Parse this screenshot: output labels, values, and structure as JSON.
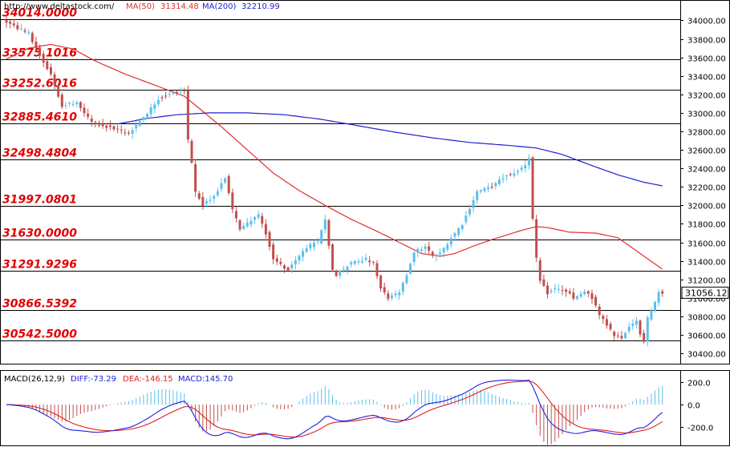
{
  "header": {
    "source": "http://www.deltastock.com/",
    "ma50_label": "MA(50)",
    "ma50_value": "31314.48",
    "ma200_label": "MA(200)",
    "ma200_value": "32210.99"
  },
  "colors": {
    "up_candle": "#5bc0eb",
    "down_candle": "#c0504d",
    "ma50": "#e03030",
    "ma200": "#2020d0",
    "level_text": "#e00000",
    "diff_line": "#2020e0",
    "dea_line": "#e02020",
    "hist_up": "#5bc0eb",
    "hist_down": "#c0504d"
  },
  "chart_data": {
    "type": "candlestick",
    "price_axis": {
      "ylim": [
        30280,
        34220
      ],
      "ticks": [
        34000,
        33800,
        33600,
        33400,
        33200,
        33000,
        32800,
        32600,
        32400,
        32200,
        32000,
        31800,
        31600,
        31400,
        31200,
        31000,
        30800,
        30600,
        30400
      ],
      "tick_labels": [
        "34000.00",
        "33800.00",
        "33600.00",
        "33400.00",
        "33200.00",
        "33000.00",
        "32800.00",
        "32600.00",
        "32400.00",
        "32200.00",
        "32000.00",
        "31800.00",
        "31600.00",
        "31400.00",
        "31200.00",
        "31000.00",
        "30800.00",
        "30600.00",
        "30400.00"
      ]
    },
    "last_price": "31056.12",
    "last_price_value": 31056.12,
    "levels": [
      {
        "label": "34014.0000",
        "value": 34014.0
      },
      {
        "label": "33575.1016",
        "value": 33575.1016
      },
      {
        "label": "33252.6016",
        "value": 33252.6016
      },
      {
        "label": "32885.4610",
        "value": 32885.461
      },
      {
        "label": "32498.4804",
        "value": 32498.4804
      },
      {
        "label": "31997.0801",
        "value": 31997.0801
      },
      {
        "label": "31630.0000",
        "value": 31630.0
      },
      {
        "label": "31291.9296",
        "value": 31291.9296
      },
      {
        "label": "30866.5392",
        "value": 30866.5392
      },
      {
        "label": "30542.5000",
        "value": 30542.5
      }
    ],
    "anchors": [
      [
        0,
        33980
      ],
      [
        6,
        33850
      ],
      [
        8,
        33700
      ],
      [
        10,
        33550
      ],
      [
        12,
        33420
      ],
      [
        13,
        33300
      ],
      [
        15,
        33080
      ],
      [
        19,
        33100
      ],
      [
        23,
        32900
      ],
      [
        28,
        32840
      ],
      [
        33,
        32780
      ],
      [
        38,
        33000
      ],
      [
        41,
        33150
      ],
      [
        44,
        33200
      ],
      [
        46,
        33230
      ],
      [
        48,
        33250
      ],
      [
        49,
        32700
      ],
      [
        50,
        32450
      ],
      [
        51,
        32150
      ],
      [
        53,
        32000
      ],
      [
        56,
        32100
      ],
      [
        59,
        32300
      ],
      [
        61,
        31950
      ],
      [
        63,
        31750
      ],
      [
        68,
        31900
      ],
      [
        70,
        31700
      ],
      [
        72,
        31420
      ],
      [
        76,
        31300
      ],
      [
        79,
        31450
      ],
      [
        81,
        31550
      ],
      [
        84,
        31600
      ],
      [
        86,
        31850
      ],
      [
        88,
        31300
      ],
      [
        89,
        31250
      ],
      [
        93,
        31380
      ],
      [
        97,
        31420
      ],
      [
        99,
        31370
      ],
      [
        101,
        31100
      ],
      [
        103,
        31000
      ],
      [
        106,
        31050
      ],
      [
        108,
        31250
      ],
      [
        110,
        31500
      ],
      [
        113,
        31550
      ],
      [
        115,
        31460
      ],
      [
        117,
        31480
      ],
      [
        120,
        31650
      ],
      [
        123,
        31800
      ],
      [
        127,
        32150
      ],
      [
        131,
        32200
      ],
      [
        134,
        32300
      ],
      [
        137,
        32350
      ],
      [
        140,
        32440
      ],
      [
        141,
        32520
      ],
      [
        142,
        31850
      ],
      [
        143,
        31420
      ],
      [
        144,
        31180
      ],
      [
        146,
        31050
      ],
      [
        148,
        31100
      ],
      [
        150,
        31080
      ],
      [
        152,
        31050
      ],
      [
        153,
        30980
      ],
      [
        156,
        31070
      ],
      [
        158,
        31000
      ],
      [
        160,
        30820
      ],
      [
        162,
        30700
      ],
      [
        164,
        30600
      ],
      [
        166,
        30560
      ],
      [
        168,
        30680
      ],
      [
        170,
        30740
      ],
      [
        171,
        30620
      ],
      [
        172,
        30540
      ],
      [
        173,
        30780
      ],
      [
        175,
        30950
      ],
      [
        176,
        31070
      ],
      [
        177,
        31056
      ]
    ],
    "ma50_anchors": [
      [
        0,
        33580
      ],
      [
        6,
        33700
      ],
      [
        12,
        33740
      ],
      [
        18,
        33690
      ],
      [
        24,
        33560
      ],
      [
        32,
        33420
      ],
      [
        40,
        33300
      ],
      [
        48,
        33180
      ],
      [
        52,
        33050
      ],
      [
        58,
        32850
      ],
      [
        65,
        32600
      ],
      [
        72,
        32350
      ],
      [
        79,
        32160
      ],
      [
        86,
        32000
      ],
      [
        93,
        31850
      ],
      [
        100,
        31720
      ],
      [
        106,
        31600
      ],
      [
        112,
        31480
      ],
      [
        117,
        31450
      ],
      [
        121,
        31480
      ],
      [
        126,
        31560
      ],
      [
        131,
        31630
      ],
      [
        135,
        31680
      ],
      [
        139,
        31730
      ],
      [
        143,
        31770
      ],
      [
        146,
        31760
      ],
      [
        152,
        31710
      ],
      [
        159,
        31700
      ],
      [
        165,
        31650
      ],
      [
        171,
        31480
      ],
      [
        177,
        31310
      ]
    ],
    "ma200_anchors": [
      [
        30,
        32880
      ],
      [
        38,
        32940
      ],
      [
        46,
        32980
      ],
      [
        55,
        33000
      ],
      [
        65,
        33000
      ],
      [
        75,
        32980
      ],
      [
        85,
        32930
      ],
      [
        95,
        32860
      ],
      [
        105,
        32790
      ],
      [
        115,
        32730
      ],
      [
        125,
        32680
      ],
      [
        135,
        32650
      ],
      [
        143,
        32620
      ],
      [
        150,
        32550
      ],
      [
        158,
        32430
      ],
      [
        165,
        32330
      ],
      [
        172,
        32250
      ],
      [
        177,
        32211
      ]
    ],
    "macd": {
      "label": "MACD(26,12,9)",
      "diff_label": "DIFF:-73.29",
      "dea_label": "DEA:-146.15",
      "macd_label": "MACD:145.70",
      "ylim": [
        -370,
        300
      ],
      "ticks": [
        200,
        0,
        -200
      ],
      "tick_labels": [
        "200.0",
        "0.0",
        "-200.0"
      ]
    }
  }
}
